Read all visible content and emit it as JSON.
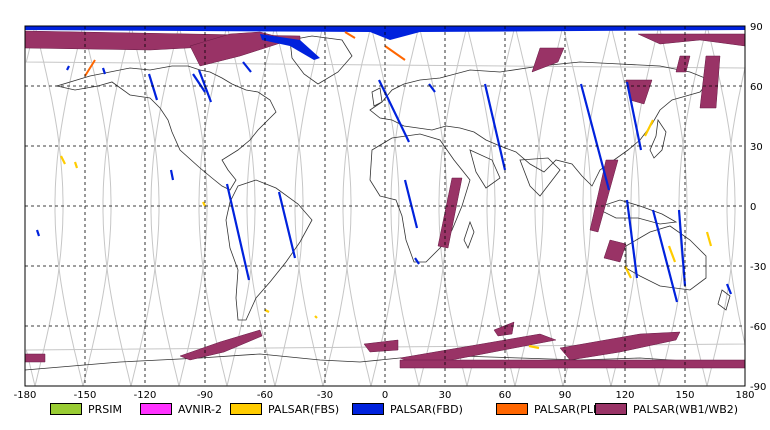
{
  "map": {
    "x_ticks": [
      "-180",
      "-150",
      "-120",
      "-90",
      "-60",
      "-30",
      "0",
      "30",
      "60",
      "90",
      "120",
      "150",
      "180"
    ],
    "y_ticks": [
      "90",
      "60",
      "30",
      "0",
      "-30",
      "-60",
      "-90"
    ]
  },
  "legend": [
    {
      "label": "PRSIM",
      "color": "#99cc33"
    },
    {
      "label": "AVNIR-2",
      "color": "#ff33ff"
    },
    {
      "label": "PALSAR(FBS)",
      "color": "#ffcc00"
    },
    {
      "label": "PALSAR(FBD)",
      "color": "#0022dd"
    },
    {
      "label": "PALSAR(PLR)",
      "color": "#ff6600"
    },
    {
      "label": "PALSAR(WB1/WB2)",
      "color": "#993366"
    }
  ],
  "swaths": {
    "fbd": [
      [
        [
          -158,
          70
        ],
        [
          -159,
          68
        ]
      ],
      [
        [
          -141,
          69
        ],
        [
          -140,
          66
        ]
      ],
      [
        [
          -118,
          66
        ],
        [
          -114,
          53
        ]
      ],
      [
        [
          -93,
          68
        ],
        [
          -87,
          52
        ]
      ],
      [
        [
          -71,
          72
        ],
        [
          -67,
          67
        ]
      ],
      [
        [
          -107,
          18
        ],
        [
          -106,
          13
        ]
      ],
      [
        [
          -79,
          11
        ],
        [
          -68,
          -37
        ]
      ],
      [
        [
          -53,
          7
        ],
        [
          -45,
          -26
        ]
      ],
      [
        [
          -174,
          -12
        ],
        [
          -173,
          -15
        ]
      ],
      [
        [
          -3,
          63
        ],
        [
          12,
          32
        ]
      ],
      [
        [
          22,
          61
        ],
        [
          25,
          57
        ]
      ],
      [
        [
          50,
          61
        ],
        [
          60,
          18
        ]
      ],
      [
        [
          10,
          13
        ],
        [
          16,
          -11
        ]
      ],
      [
        [
          98,
          61
        ],
        [
          112,
          8
        ]
      ],
      [
        [
          121,
          62
        ],
        [
          128,
          28
        ]
      ],
      [
        [
          121,
          3
        ],
        [
          126,
          -36
        ]
      ],
      [
        [
          134,
          -2
        ],
        [
          146,
          -48
        ]
      ],
      [
        [
          147,
          -2
        ],
        [
          150,
          -40
        ]
      ],
      [
        [
          171,
          -39
        ],
        [
          173,
          -44
        ]
      ],
      [
        [
          15,
          -26
        ],
        [
          17,
          -29
        ]
      ],
      [
        [
          -96,
          66
        ],
        [
          -90,
          57
        ]
      ]
    ],
    "fbs": [
      [
        [
          -162,
          25
        ],
        [
          -160,
          21
        ]
      ],
      [
        [
          -155,
          22
        ],
        [
          -154,
          19
        ]
      ],
      [
        [
          -91,
          2
        ],
        [
          -90,
          0
        ]
      ],
      [
        [
          -60,
          -52
        ],
        [
          -58,
          -53
        ]
      ],
      [
        [
          -35,
          -55
        ],
        [
          -34,
          -56
        ]
      ],
      [
        [
          130,
          35
        ],
        [
          134,
          43
        ]
      ],
      [
        [
          142,
          -20
        ],
        [
          145,
          -28
        ]
      ],
      [
        [
          161,
          -13
        ],
        [
          163,
          -20
        ]
      ],
      [
        [
          120,
          -30
        ],
        [
          123,
          -36
        ]
      ],
      [
        [
          72,
          -70
        ],
        [
          77,
          -71
        ]
      ]
    ],
    "plr": [
      [
        [
          -150,
          65
        ],
        [
          -145,
          73
        ]
      ],
      [
        [
          -20,
          87
        ],
        [
          -15,
          84
        ]
      ],
      [
        [
          0,
          80
        ],
        [
          10,
          73
        ]
      ]
    ]
  }
}
